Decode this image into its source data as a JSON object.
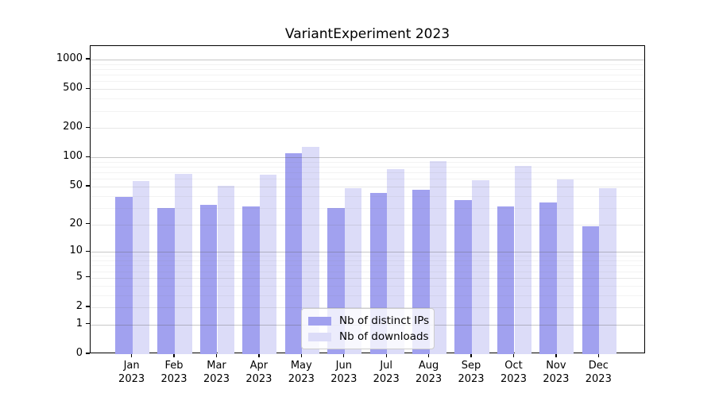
{
  "title": "VariantExperiment 2023",
  "chart_data": {
    "type": "bar",
    "title": "VariantExperiment 2023",
    "categories": [
      "Jan",
      "Feb",
      "Mar",
      "Apr",
      "May",
      "Jun",
      "Jul",
      "Aug",
      "Sep",
      "Oct",
      "Nov",
      "Dec"
    ],
    "category_year": "2023",
    "series": [
      {
        "name": "Nb of distinct IPs",
        "color": "#a1a1ef",
        "values": [
          39,
          30,
          32,
          31,
          111,
          30,
          43,
          46,
          36,
          31,
          34,
          19
        ]
      },
      {
        "name": "Nb of downloads",
        "color": "#dcdcf8",
        "values": [
          57,
          67,
          51,
          66,
          127,
          48,
          75,
          91,
          58,
          81,
          59,
          48
        ]
      }
    ],
    "xlabel": "",
    "ylabel": "",
    "yscale": "log1p",
    "ylim": [
      0,
      1360
    ],
    "y_tick_labels": [
      0,
      1,
      2,
      5,
      10,
      20,
      50,
      100,
      200,
      500,
      1000
    ],
    "y_decade_ticks": [
      1,
      10,
      100,
      1000
    ],
    "y_minor_gridlines": [
      3,
      4,
      6,
      7,
      8,
      9,
      30,
      40,
      60,
      70,
      80,
      90,
      300,
      400,
      600,
      700,
      800,
      900
    ],
    "grid": true,
    "legend_position": "lower center"
  }
}
